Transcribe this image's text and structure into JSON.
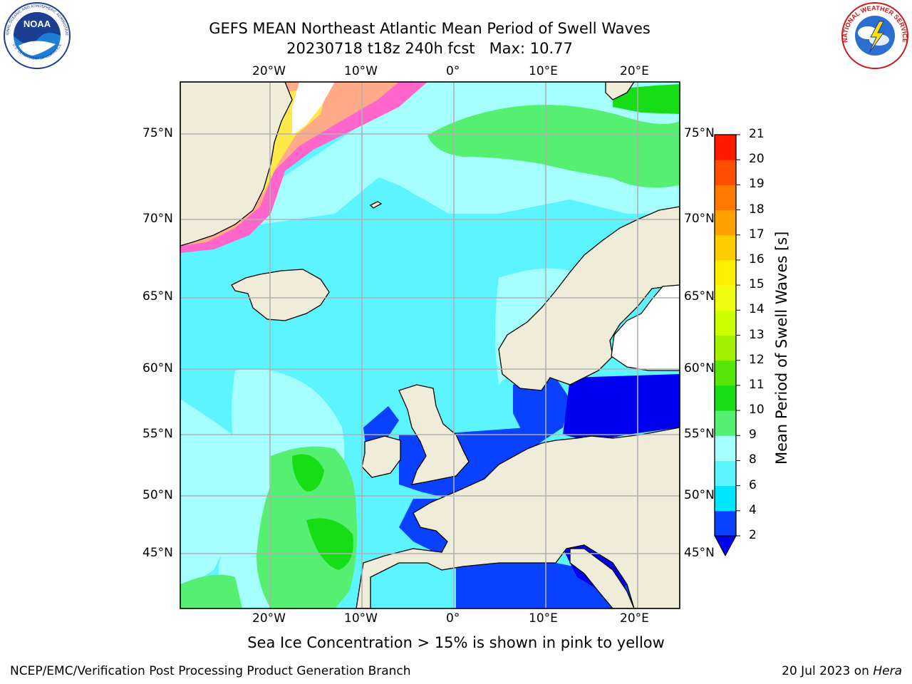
{
  "header": {
    "title_line1": "GEFS MEAN Northeast Atlantic Mean Period of Swell Waves",
    "title_line2": "20230718 t18z 240h fcst   Max: 10.77"
  },
  "logos": {
    "left": "NOAA",
    "right": "NATIONAL WEATHER SERVICE",
    "left_ring_text": "NATIONAL OCEANIC AND ATMOSPHERIC ADMINISTRATION",
    "left_ring_text_bottom": "U.S. DEPARTMENT OF COMMERCE"
  },
  "map": {
    "lon_labels": [
      "20°W",
      "10°W",
      "0°",
      "10°E",
      "20°E"
    ],
    "lat_labels": [
      "75°N",
      "70°N",
      "65°N",
      "60°N",
      "55°N",
      "50°N",
      "45°N"
    ],
    "land_color": "#efecda",
    "grid_color": "#b0b0b0"
  },
  "colorbar": {
    "label": "Mean Period of Swell Waves [s]",
    "ticks": [
      "2",
      "4",
      "6",
      "8",
      "9",
      "10",
      "11",
      "12",
      "13",
      "14",
      "15",
      "16",
      "17",
      "18",
      "19",
      "20",
      "21"
    ],
    "colors": [
      "#0a40ff",
      "#00e6ff",
      "#5cf5ff",
      "#a6ffff",
      "#55ef72",
      "#16dd16",
      "#57e60a",
      "#a2ef00",
      "#ccff00",
      "#f0ff12",
      "#fff000",
      "#ffcc00",
      "#ffa200",
      "#ff7800",
      "#ff4e00",
      "#ff1800"
    ],
    "under_color": "#0000f0"
  },
  "note": "Sea Ice Concentration > 15% is shown in pink to yellow",
  "footer": {
    "left": "NCEP/EMC/Verification Post Processing Product Generation Branch",
    "right_date": "20 Jul 2023 on ",
    "right_machine": "Hera"
  }
}
